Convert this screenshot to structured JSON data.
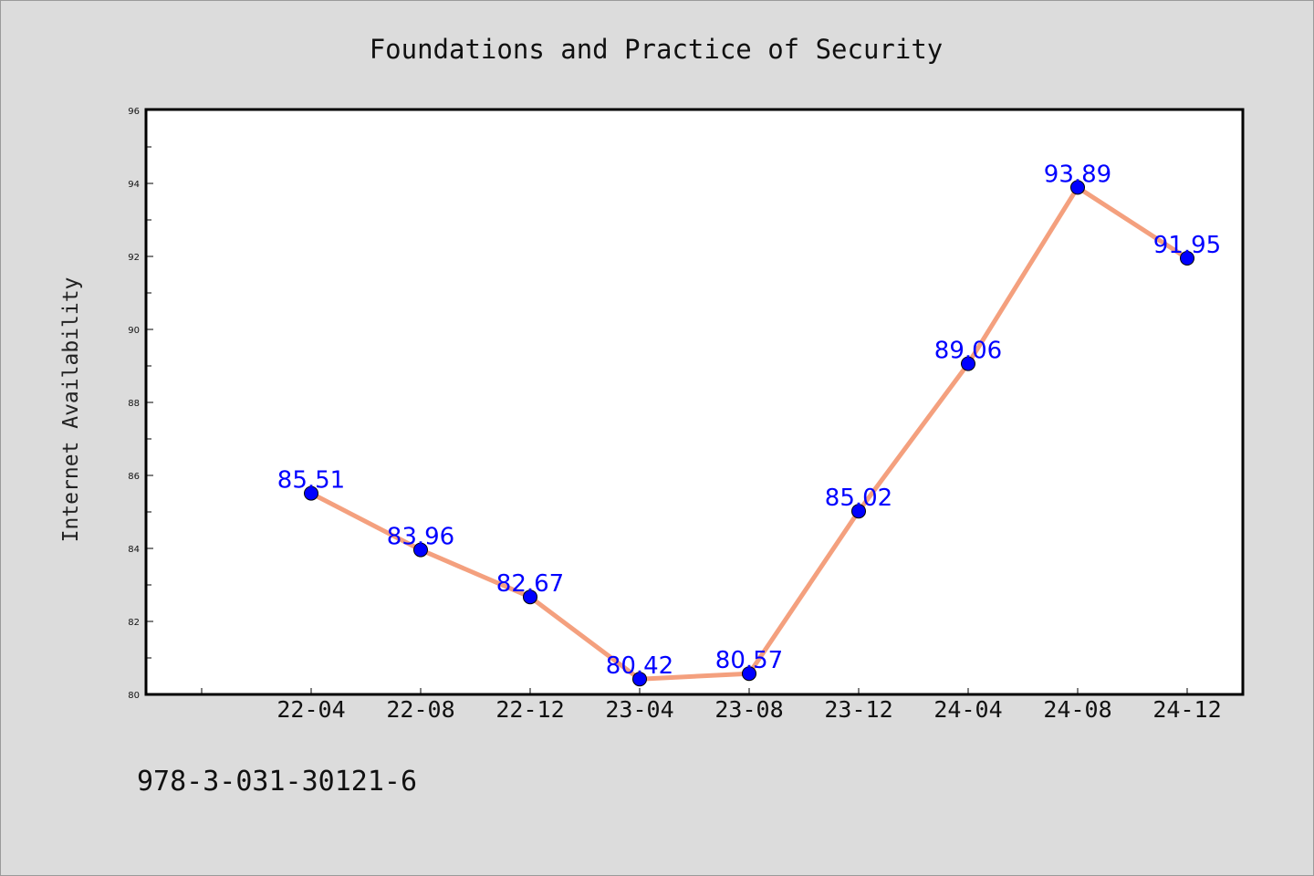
{
  "chart_data": {
    "type": "line",
    "title": "Foundations and Practice of Security",
    "xlabel": "",
    "ylabel": "Internet Availability",
    "categories": [
      "22-04",
      "22-08",
      "22-12",
      "23-04",
      "23-08",
      "23-12",
      "24-04",
      "24-08",
      "24-12"
    ],
    "series": [
      {
        "values": [
          85.51,
          83.96,
          82.67,
          80.42,
          80.57,
          85.02,
          89.06,
          93.89,
          91.95
        ],
        "line_color": "#f4a07e",
        "marker_color": "#0000ff",
        "label_color": "#0000ff"
      }
    ],
    "ylim": [
      80,
      96
    ],
    "yticks": [
      80,
      82,
      84,
      86,
      88,
      90,
      92,
      94,
      96
    ],
    "grid": false,
    "legend": "none"
  },
  "footer": {
    "isbn": "978-3-031-30121-6"
  },
  "colors": {
    "background": "#dcdcdc",
    "plot_area": "#ffffff",
    "axis": "#000000"
  }
}
